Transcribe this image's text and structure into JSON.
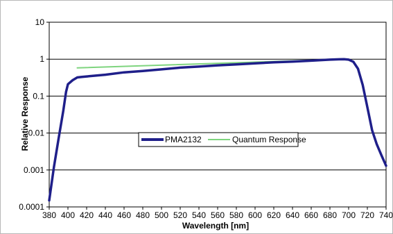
{
  "chart_data": {
    "type": "line",
    "title": "",
    "xlabel": "Wavelength [nm]",
    "ylabel": "Relative Response",
    "xlim": [
      380,
      740
    ],
    "ylim": [
      0.0001,
      10
    ],
    "yscale": "log",
    "grid": "horizontal major",
    "legend": "center",
    "x_ticks": [
      "380",
      "400",
      "420",
      "440",
      "460",
      "480",
      "500",
      "520",
      "540",
      "560",
      "580",
      "600",
      "620",
      "640",
      "660",
      "680",
      "700",
      "720",
      "740"
    ],
    "y_ticks": [
      "0.0001",
      "0.001",
      "0.01",
      "0.1",
      "1",
      "10"
    ],
    "series": [
      {
        "name": "PMA2132",
        "color": "#1f1f8a",
        "x": [
          380,
          385,
          390,
          395,
          398,
          400,
          405,
          410,
          415,
          420,
          440,
          460,
          480,
          500,
          520,
          540,
          560,
          580,
          600,
          620,
          640,
          660,
          680,
          690,
          695,
          700,
          705,
          710,
          715,
          720,
          725,
          730,
          735,
          740
        ],
        "y": [
          0.00015,
          0.0012,
          0.007,
          0.04,
          0.13,
          0.21,
          0.27,
          0.32,
          0.33,
          0.34,
          0.38,
          0.44,
          0.48,
          0.53,
          0.59,
          0.63,
          0.68,
          0.72,
          0.77,
          0.82,
          0.86,
          0.91,
          0.97,
          0.99,
          1.0,
          0.97,
          0.85,
          0.55,
          0.2,
          0.05,
          0.012,
          0.005,
          0.0025,
          0.0013
        ]
      },
      {
        "name": "Quantum Response",
        "color": "#7ed47e",
        "x": [
          410,
          695
        ],
        "y": [
          0.58,
          1.0
        ]
      }
    ]
  }
}
